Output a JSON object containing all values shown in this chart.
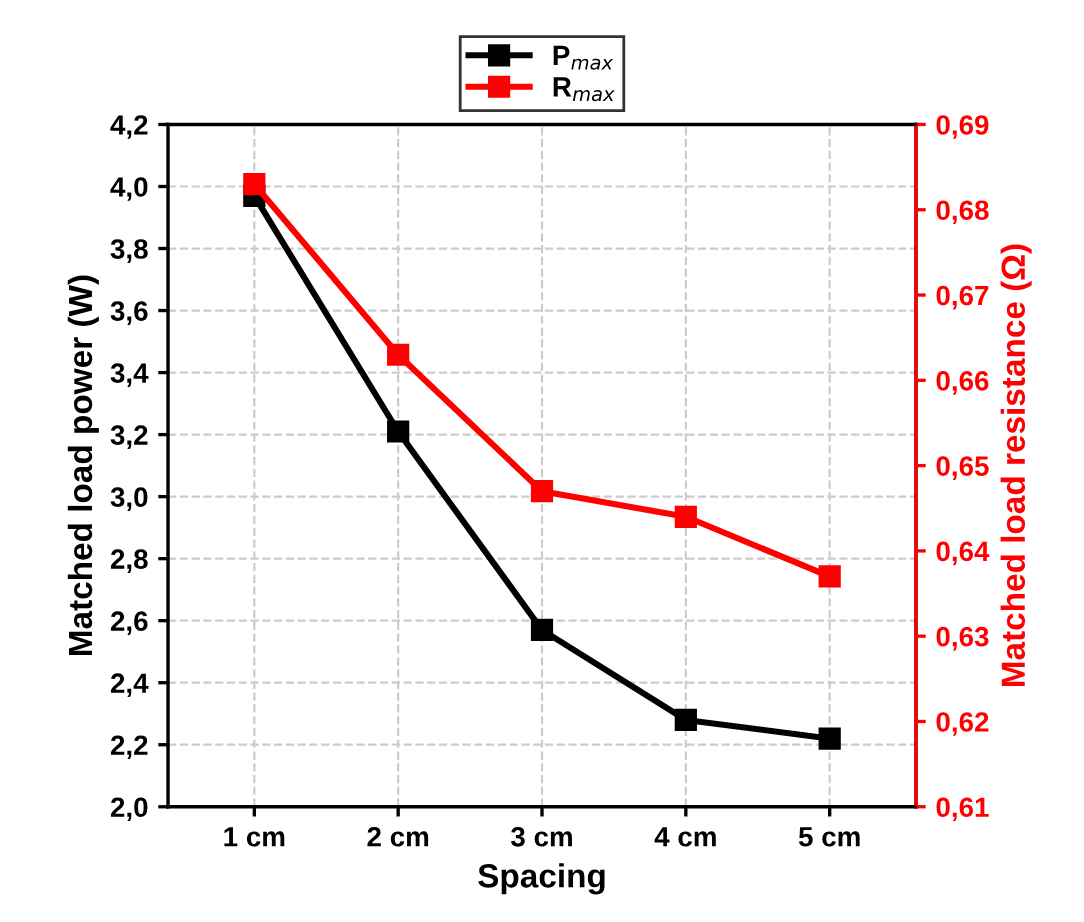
{
  "chart_data": {
    "type": "line",
    "xlabel": "Spacing",
    "ylabel": "Matched load power (W)",
    "y2label": "Matched load resistance (Ω)",
    "categories": [
      "1 cm",
      "2 cm",
      "3 cm",
      "4 cm",
      "5 cm"
    ],
    "series": [
      {
        "name": "P$_{max}$",
        "color": "#000000",
        "values": [
          3.97,
          3.21,
          2.57,
          2.28,
          2.22
        ]
      },
      {
        "name": "R$_{max}$",
        "color": "#ff0000",
        "values": [
          0.683,
          0.663,
          0.647,
          0.644,
          0.637
        ],
        "axis": "y2"
      }
    ],
    "ylim": [
      2.0,
      4.2
    ],
    "yticks": [
      {
        "value": 2.0,
        "label": "2,0"
      },
      {
        "value": 2.2,
        "label": "2,2"
      },
      {
        "value": 2.4,
        "label": "2,4"
      },
      {
        "value": 2.6,
        "label": "2,6"
      },
      {
        "value": 2.8,
        "label": "2,8"
      },
      {
        "value": 3.0,
        "label": "3,0"
      },
      {
        "value": 3.2,
        "label": "3,2"
      },
      {
        "value": 3.4,
        "label": "3,4"
      },
      {
        "value": 3.6,
        "label": "3,6"
      },
      {
        "value": 3.8,
        "label": "3,8"
      },
      {
        "value": 4.0,
        "label": "4,0"
      },
      {
        "value": 4.2,
        "label": "4,2"
      }
    ],
    "y2lim": [
      0.61,
      0.69
    ],
    "y2ticks": [
      {
        "value": 0.61,
        "label": "0,61"
      },
      {
        "value": 0.62,
        "label": "0,62"
      },
      {
        "value": 0.63,
        "label": "0,63"
      },
      {
        "value": 0.64,
        "label": "0,64"
      },
      {
        "value": 0.65,
        "label": "0,65"
      },
      {
        "value": 0.66,
        "label": "0,66"
      },
      {
        "value": 0.67,
        "label": "0,67"
      },
      {
        "value": 0.68,
        "label": "0,68"
      },
      {
        "value": 0.69,
        "label": "0,69"
      }
    ],
    "grid": true,
    "legend": "top",
    "marker": "square",
    "line_style": "solid"
  }
}
